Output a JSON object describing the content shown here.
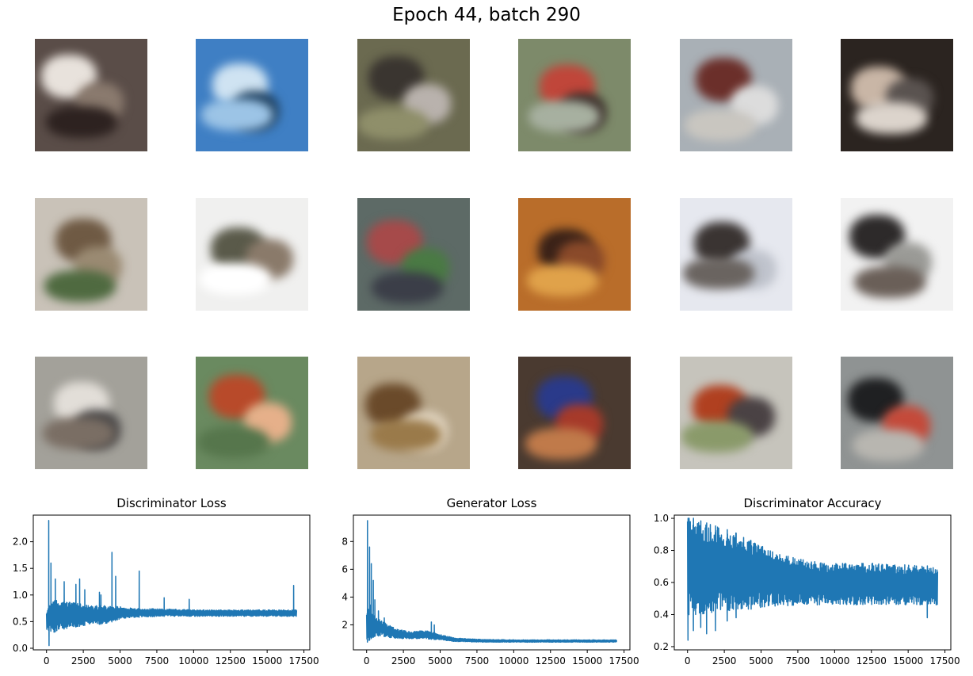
{
  "figure": {
    "suptitle": "Epoch 44, batch 290"
  },
  "samples": {
    "count": 18,
    "tiles": [
      {
        "bg": "#5a4d48",
        "blobs": [
          "#e8e2dc",
          "#8a7a6e",
          "#2d2220"
        ]
      },
      {
        "bg": "#3f7fc4",
        "blobs": [
          "#cfe3f2",
          "#1e3f5e",
          "#9cc4e6"
        ]
      },
      {
        "bg": "#6b6a50",
        "blobs": [
          "#3a3530",
          "#b9b2ad",
          "#8f8f6a"
        ]
      },
      {
        "bg": "#7d8a6a",
        "blobs": [
          "#c0463a",
          "#3b2e2a",
          "#a7b0a0"
        ]
      },
      {
        "bg": "#a9b0b6",
        "blobs": [
          "#6b2f2a",
          "#dcdcdc",
          "#c9c6c0"
        ]
      },
      {
        "bg": "#2b2420",
        "blobs": [
          "#c9b6a6",
          "#5a5350",
          "#dcd4cc"
        ]
      },
      {
        "bg": "#c9c2b8",
        "blobs": [
          "#6f5a44",
          "#9a8a72",
          "#4f6a40"
        ]
      },
      {
        "bg": "#f0f0ef",
        "blobs": [
          "#5a5a4a",
          "#8a7a6a",
          "#ffffff"
        ]
      },
      {
        "bg": "#5d6a66",
        "blobs": [
          "#a64a4a",
          "#4a7a44",
          "#3b3e48"
        ]
      },
      {
        "bg": "#b96d2a",
        "blobs": [
          "#3a2218",
          "#8a4a2a",
          "#e0a24a"
        ]
      },
      {
        "bg": "#e6e8ef",
        "blobs": [
          "#3a3432",
          "#bfc3cc",
          "#6a6460"
        ]
      },
      {
        "bg": "#f2f2f2",
        "blobs": [
          "#2d2a2a",
          "#9a9a96",
          "#6a5f58"
        ]
      },
      {
        "bg": "#a3a19a",
        "blobs": [
          "#e2ded8",
          "#4a4848",
          "#7a6e64"
        ]
      },
      {
        "bg": "#6a8a60",
        "blobs": [
          "#b84a2a",
          "#e6b08a",
          "#56764c"
        ]
      },
      {
        "bg": "#b7a68a",
        "blobs": [
          "#6a4a2a",
          "#e2d6c2",
          "#9a7a4a"
        ]
      },
      {
        "bg": "#4a3a30",
        "blobs": [
          "#2a3a8a",
          "#a63a2a",
          "#c07a4a"
        ]
      },
      {
        "bg": "#c6c4bc",
        "blobs": [
          "#b04020",
          "#4a4244",
          "#8a9a6a"
        ]
      },
      {
        "bg": "#8f9393",
        "blobs": [
          "#1f2022",
          "#c44a3a",
          "#b8b6b0"
        ]
      }
    ]
  },
  "chart_data": [
    {
      "type": "line",
      "title": "Discriminator Loss",
      "xlim": [
        -900,
        17900
      ],
      "ylim": [
        -0.03,
        2.5
      ],
      "xticks": [
        0,
        2500,
        5000,
        7500,
        10000,
        12500,
        15000,
        17500
      ],
      "xtick_labels": [
        "0",
        "2500",
        "5000",
        "7500",
        "10000",
        "12500",
        "15000",
        "17500"
      ],
      "yticks": [
        0.0,
        0.5,
        1.0,
        1.5,
        2.0
      ],
      "ytick_labels": [
        "0.0",
        "0.5",
        "1.0",
        "1.5",
        "2.0"
      ],
      "color": "#1f77b4",
      "x_end": 17000,
      "envelope": [
        [
          0,
          0.35,
          0.75
        ],
        [
          500,
          0.3,
          0.9
        ],
        [
          1000,
          0.35,
          0.9
        ],
        [
          2000,
          0.4,
          0.85
        ],
        [
          3000,
          0.45,
          0.8
        ],
        [
          4000,
          0.45,
          0.8
        ],
        [
          5000,
          0.55,
          0.78
        ],
        [
          6000,
          0.58,
          0.75
        ],
        [
          8000,
          0.6,
          0.74
        ],
        [
          10000,
          0.6,
          0.72
        ],
        [
          12500,
          0.6,
          0.72
        ],
        [
          15000,
          0.6,
          0.72
        ],
        [
          17000,
          0.6,
          0.72
        ]
      ],
      "spikes": [
        [
          150,
          2.4
        ],
        [
          170,
          0.05
        ],
        [
          300,
          1.6
        ],
        [
          600,
          1.3
        ],
        [
          1200,
          1.25
        ],
        [
          2000,
          1.2
        ],
        [
          2250,
          1.3
        ],
        [
          2600,
          1.1
        ],
        [
          3600,
          1.05
        ],
        [
          3700,
          1.0
        ],
        [
          4450,
          1.8
        ],
        [
          4700,
          1.35
        ],
        [
          6300,
          1.45
        ],
        [
          8000,
          0.95
        ],
        [
          9700,
          0.92
        ],
        [
          16800,
          1.18
        ]
      ]
    },
    {
      "type": "line",
      "title": "Generator Loss",
      "xlim": [
        -900,
        17900
      ],
      "ylim": [
        0.2,
        9.9
      ],
      "xticks": [
        0,
        2500,
        5000,
        7500,
        10000,
        12500,
        15000,
        17500
      ],
      "xtick_labels": [
        "0",
        "2500",
        "5000",
        "7500",
        "10000",
        "12500",
        "15000",
        "17500"
      ],
      "yticks": [
        2,
        4,
        6,
        8
      ],
      "ytick_labels": [
        "2",
        "4",
        "6",
        "8"
      ],
      "color": "#1f77b4",
      "x_end": 17000,
      "envelope": [
        [
          0,
          0.7,
          3.0
        ],
        [
          300,
          1.0,
          3.5
        ],
        [
          600,
          1.2,
          2.6
        ],
        [
          1000,
          1.2,
          2.3
        ],
        [
          2000,
          1.0,
          1.7
        ],
        [
          3000,
          1.0,
          1.5
        ],
        [
          4000,
          1.0,
          1.6
        ],
        [
          5000,
          0.9,
          1.3
        ],
        [
          6000,
          0.8,
          1.05
        ],
        [
          8000,
          0.75,
          0.95
        ],
        [
          10000,
          0.75,
          0.92
        ],
        [
          12500,
          0.75,
          0.92
        ],
        [
          15000,
          0.75,
          0.92
        ],
        [
          17000,
          0.75,
          0.92
        ]
      ],
      "spikes": [
        [
          60,
          9.5
        ],
        [
          200,
          7.6
        ],
        [
          320,
          6.4
        ],
        [
          450,
          5.2
        ],
        [
          560,
          3.8
        ],
        [
          800,
          3.0
        ],
        [
          1200,
          2.5
        ],
        [
          4400,
          2.2
        ],
        [
          4600,
          2.0
        ]
      ]
    },
    {
      "type": "line",
      "title": "Discriminator Accuracy",
      "xlim": [
        -900,
        17900
      ],
      "ylim": [
        0.18,
        1.02
      ],
      "xticks": [
        0,
        2500,
        5000,
        7500,
        10000,
        12500,
        15000,
        17500
      ],
      "xtick_labels": [
        "0",
        "2500",
        "5000",
        "7500",
        "10000",
        "12500",
        "15000",
        "17500"
      ],
      "yticks": [
        0.2,
        0.4,
        0.6,
        0.8,
        1.0
      ],
      "ytick_labels": [
        "0.2",
        "0.4",
        "0.6",
        "0.8",
        "1.0"
      ],
      "color": "#1f77b4",
      "x_end": 17000,
      "envelope": [
        [
          0,
          0.4,
          1.0
        ],
        [
          500,
          0.4,
          1.0
        ],
        [
          1000,
          0.4,
          0.98
        ],
        [
          2000,
          0.42,
          0.95
        ],
        [
          3000,
          0.42,
          0.92
        ],
        [
          4000,
          0.43,
          0.88
        ],
        [
          5000,
          0.44,
          0.85
        ],
        [
          6000,
          0.45,
          0.78
        ],
        [
          8000,
          0.46,
          0.74
        ],
        [
          10000,
          0.46,
          0.72
        ],
        [
          12500,
          0.46,
          0.72
        ],
        [
          15000,
          0.46,
          0.71
        ],
        [
          17000,
          0.46,
          0.7
        ]
      ],
      "spikes": [
        [
          30,
          0.24
        ],
        [
          100,
          1.0
        ],
        [
          400,
          0.3
        ],
        [
          900,
          0.32
        ],
        [
          1300,
          0.28
        ],
        [
          1900,
          0.3
        ],
        [
          2700,
          0.36
        ],
        [
          3300,
          0.38
        ],
        [
          16300,
          0.38
        ]
      ]
    }
  ]
}
